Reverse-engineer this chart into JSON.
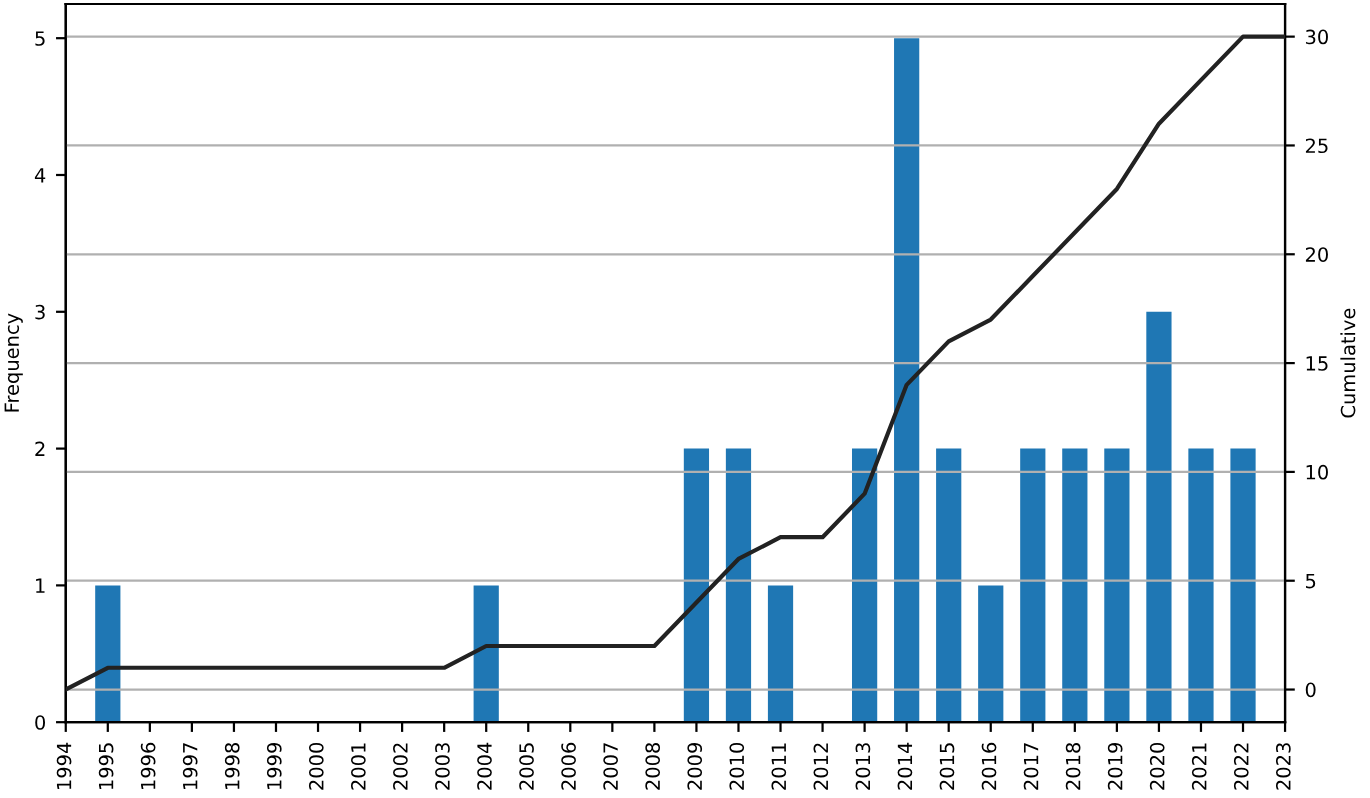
{
  "chart_data": {
    "type": "bar",
    "ylabel": "Frequency",
    "y2label": "Cumulative",
    "categories": [
      "1994",
      "1995",
      "1996",
      "1997",
      "1998",
      "1999",
      "2000",
      "2001",
      "2002",
      "2003",
      "2004",
      "2005",
      "2006",
      "2007",
      "2008",
      "2009",
      "2010",
      "2011",
      "2012",
      "2013",
      "2014",
      "2015",
      "2016",
      "2017",
      "2018",
      "2019",
      "2020",
      "2021",
      "2022",
      "2023"
    ],
    "series": [
      {
        "color": "#1f77b4",
        "values": [
          0,
          1,
          0,
          0,
          0,
          0,
          0,
          0,
          0,
          0,
          1,
          0,
          0,
          0,
          0,
          2,
          2,
          1,
          0,
          2,
          5,
          2,
          1,
          2,
          2,
          2,
          3,
          2,
          2,
          0
        ]
      },
      {
        "type": "line",
        "axis": "y2",
        "color": "#222222",
        "values": [
          0,
          1,
          1,
          1,
          1,
          1,
          1,
          1,
          1,
          1,
          2,
          2,
          2,
          2,
          2,
          4,
          6,
          7,
          7,
          9,
          14,
          16,
          17,
          19,
          21,
          23,
          26,
          28,
          30,
          30
        ]
      }
    ],
    "ylim": [
      0,
      5.25
    ],
    "yticks": [
      0,
      1,
      2,
      3,
      4,
      5
    ],
    "y2lim": [
      -1.5,
      31.5
    ],
    "y2ticks": [
      0,
      5,
      10,
      15,
      20,
      25,
      30
    ],
    "grid": "y",
    "marker": "none",
    "line_style": "solid"
  }
}
